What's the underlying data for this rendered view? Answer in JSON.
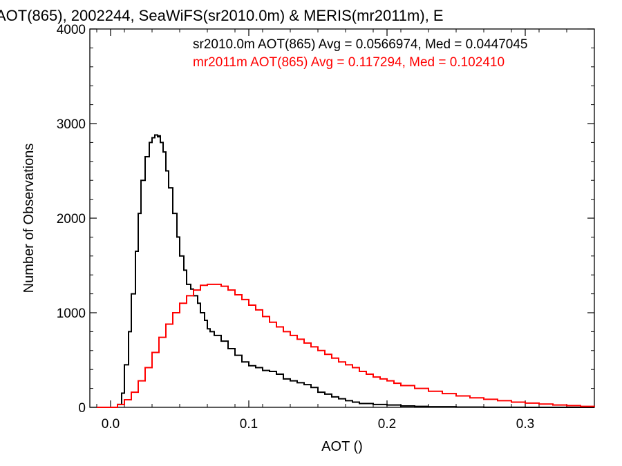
{
  "chart_data": {
    "type": "line",
    "title": "AOT(865), 2002244, SeaWiFS(sr2010.0m) & MERIS(mr2011m), E",
    "xlabel": "AOT ()",
    "ylabel": "Number of Observations",
    "xlim": [
      -0.015,
      0.35
    ],
    "ylim": [
      0,
      4000
    ],
    "x_ticks": [
      "0.0",
      "0.1",
      "0.2",
      "0.3"
    ],
    "y_ticks": [
      "0",
      "1000",
      "2000",
      "3000",
      "4000"
    ],
    "grid": false,
    "legend_position": "top-right",
    "step": "histogram",
    "series": [
      {
        "name": "sr2010.0m AOT(865) Avg = 0.0566974, Med = 0.0447045",
        "color": "#000000",
        "x": [
          -0.01,
          0.0,
          0.005,
          0.008,
          0.01,
          0.013,
          0.015,
          0.018,
          0.02,
          0.022,
          0.025,
          0.028,
          0.03,
          0.032,
          0.034,
          0.035,
          0.036,
          0.038,
          0.04,
          0.042,
          0.045,
          0.048,
          0.05,
          0.053,
          0.055,
          0.058,
          0.06,
          0.063,
          0.065,
          0.068,
          0.07,
          0.072,
          0.075,
          0.08,
          0.085,
          0.09,
          0.095,
          0.1,
          0.105,
          0.11,
          0.115,
          0.12,
          0.125,
          0.13,
          0.135,
          0.14,
          0.145,
          0.15,
          0.155,
          0.16,
          0.165,
          0.17,
          0.175,
          0.18,
          0.19,
          0.2,
          0.21,
          0.22,
          0.23,
          0.25,
          0.27,
          0.3,
          0.33,
          0.35
        ],
        "y": [
          0,
          0,
          30,
          150,
          450,
          800,
          1200,
          1650,
          2050,
          2400,
          2650,
          2800,
          2850,
          2880,
          2860,
          2870,
          2800,
          2700,
          2500,
          2320,
          2050,
          1800,
          1600,
          1450,
          1300,
          1250,
          1180,
          1100,
          1000,
          920,
          830,
          800,
          760,
          700,
          620,
          550,
          480,
          440,
          420,
          390,
          380,
          350,
          300,
          280,
          260,
          240,
          210,
          160,
          140,
          110,
          90,
          70,
          55,
          40,
          30,
          25,
          15,
          10,
          6,
          3,
          1,
          0,
          0,
          0
        ]
      },
      {
        "name": "mr2011m AOT(865) Avg = 0.117294, Med = 0.102410",
        "color": "#ff0000",
        "x": [
          -0.01,
          0.005,
          0.01,
          0.015,
          0.02,
          0.025,
          0.03,
          0.035,
          0.04,
          0.045,
          0.05,
          0.055,
          0.06,
          0.065,
          0.07,
          0.075,
          0.08,
          0.085,
          0.09,
          0.095,
          0.1,
          0.105,
          0.11,
          0.115,
          0.12,
          0.125,
          0.13,
          0.135,
          0.14,
          0.145,
          0.15,
          0.155,
          0.16,
          0.165,
          0.17,
          0.175,
          0.18,
          0.185,
          0.19,
          0.195,
          0.2,
          0.205,
          0.21,
          0.22,
          0.23,
          0.24,
          0.25,
          0.26,
          0.27,
          0.28,
          0.29,
          0.3,
          0.31,
          0.32,
          0.33,
          0.34,
          0.35
        ],
        "y": [
          0,
          30,
          80,
          160,
          280,
          420,
          580,
          740,
          880,
          1000,
          1100,
          1180,
          1240,
          1290,
          1300,
          1300,
          1280,
          1240,
          1190,
          1140,
          1080,
          1030,
          960,
          900,
          850,
          800,
          760,
          720,
          680,
          640,
          600,
          560,
          520,
          480,
          450,
          420,
          380,
          350,
          320,
          300,
          280,
          255,
          230,
          200,
          170,
          145,
          120,
          100,
          85,
          70,
          55,
          45,
          35,
          25,
          18,
          10,
          5
        ]
      }
    ]
  }
}
